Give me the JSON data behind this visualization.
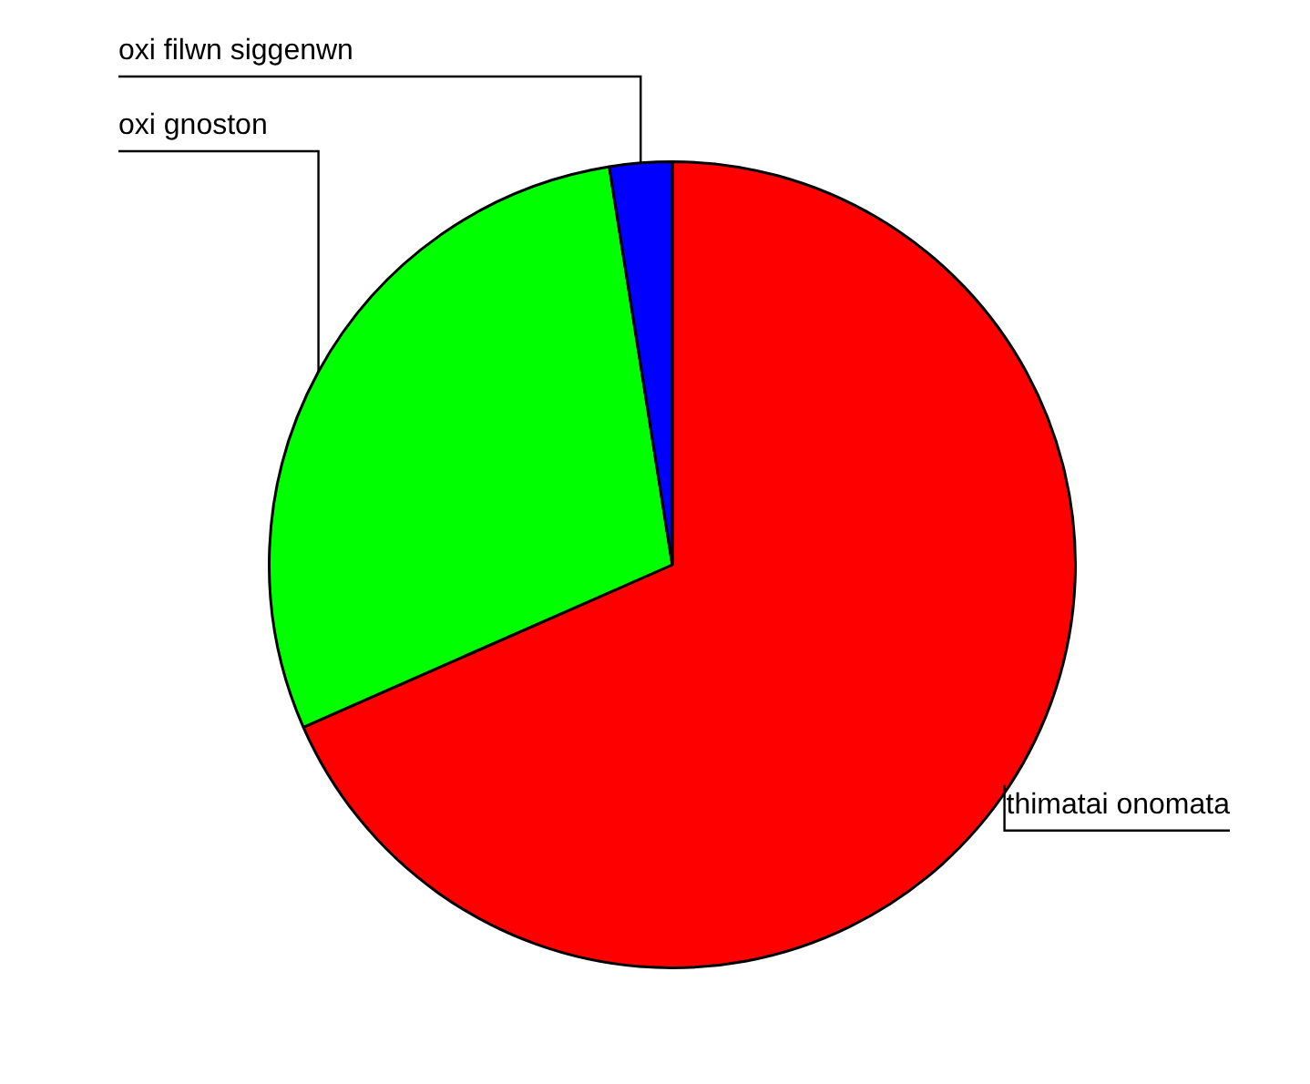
{
  "chart_data": {
    "type": "pie",
    "categories": [
      "thimatai onomata",
      "oxi gnoston",
      "oxi filwn siggenwn"
    ],
    "values": [
      68.4,
      29.1,
      2.5
    ],
    "colors": [
      "#ff0000",
      "#00ff00",
      "#0000ff"
    ],
    "legend": false
  }
}
